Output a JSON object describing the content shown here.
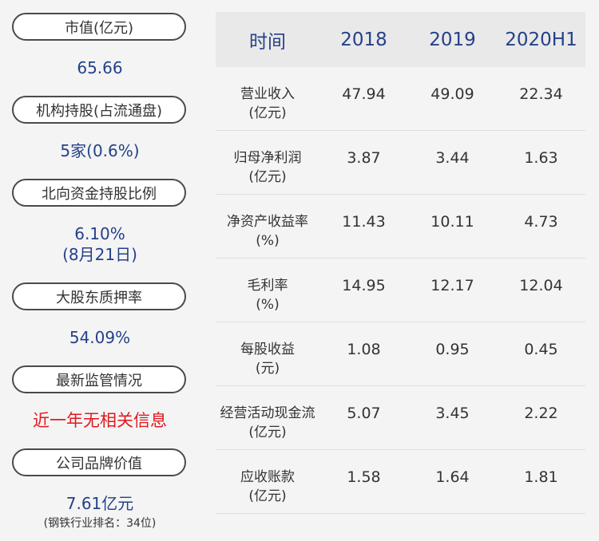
{
  "left": {
    "items": [
      {
        "label": "市值(亿元)",
        "value": "65.66"
      },
      {
        "label": "机构持股(占流通盘)",
        "value": "5家(0.6%)"
      },
      {
        "label": "北向资金持股比例",
        "value": "6.10%",
        "value2": "(8月21日)"
      },
      {
        "label": "大股东质押率",
        "value": "54.09%"
      },
      {
        "label": "最新监管情况",
        "value": "近一年无相关信息"
      },
      {
        "label": "公司品牌价值",
        "value": "7.61亿元",
        "sub": "(钢铁行业排名：34位)"
      }
    ]
  },
  "table": {
    "headers": [
      "时间",
      "2018",
      "2019",
      "2020H1"
    ],
    "rows": [
      {
        "name": "营业收入",
        "unit": "(亿元)",
        "values": [
          "47.94",
          "49.09",
          "22.34"
        ]
      },
      {
        "name": "归母净利润",
        "unit": "(亿元)",
        "values": [
          "3.87",
          "3.44",
          "1.63"
        ]
      },
      {
        "name": "净资产收益率",
        "unit": "(%)",
        "values": [
          "11.43",
          "10.11",
          "4.73"
        ]
      },
      {
        "name": "毛利率",
        "unit": "(%)",
        "values": [
          "14.95",
          "12.17",
          "12.04"
        ]
      },
      {
        "name": "每股收益",
        "unit": "(元)",
        "values": [
          "1.08",
          "0.95",
          "0.45"
        ]
      },
      {
        "name": "经营活动现金流",
        "unit": "(亿元)",
        "values": [
          "5.07",
          "3.45",
          "2.22"
        ]
      },
      {
        "name": "应收账款",
        "unit": "(亿元)",
        "values": [
          "1.58",
          "1.64",
          "1.81"
        ]
      }
    ]
  },
  "colors": {
    "value_blue": "#24418a",
    "alert_red": "#e0191f",
    "header_bg": "#e9e9e9",
    "page_bg": "#f4f4f4"
  }
}
